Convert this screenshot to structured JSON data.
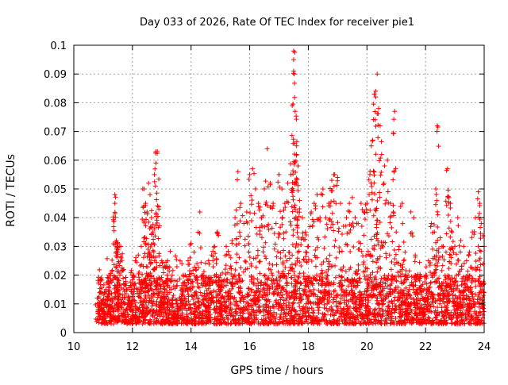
{
  "chart_data": {
    "type": "scatter",
    "title": "Day 033 of 2026, Rate Of TEC Index for receiver pie1",
    "xlabel": "GPS time / hours",
    "ylabel": "ROTI / TECUs",
    "xlim": [
      10,
      24
    ],
    "ylim": [
      0,
      0.1
    ],
    "x_ticks": [
      "10",
      "12",
      "14",
      "16",
      "18",
      "20",
      "22",
      "24"
    ],
    "y_ticks": [
      "0",
      "0.01",
      "0.02",
      "0.03",
      "0.04",
      "0.05",
      "0.06",
      "0.07",
      "0.08",
      "0.09",
      "0.1"
    ],
    "grid": true,
    "legend": "none",
    "marker": "+",
    "point_color": "#ff0000",
    "series": [
      {
        "points": [
          [
            10.8,
            0.012
          ],
          [
            10.9,
            0.018
          ],
          [
            11.0,
            0.01
          ],
          [
            11.1,
            0.015
          ],
          [
            11.2,
            0.02
          ],
          [
            11.3,
            0.012
          ],
          [
            11.4,
            0.048
          ],
          [
            11.4,
            0.045
          ],
          [
            11.45,
            0.032
          ],
          [
            11.5,
            0.031
          ],
          [
            11.55,
            0.03
          ],
          [
            11.6,
            0.03
          ],
          [
            11.5,
            0.028
          ],
          [
            11.7,
            0.022
          ],
          [
            11.8,
            0.015
          ],
          [
            11.9,
            0.012
          ],
          [
            12.0,
            0.02
          ],
          [
            12.1,
            0.025
          ],
          [
            12.2,
            0.027
          ],
          [
            12.3,
            0.03
          ],
          [
            12.35,
            0.05
          ],
          [
            12.4,
            0.05
          ],
          [
            12.45,
            0.045
          ],
          [
            12.5,
            0.042
          ],
          [
            12.55,
            0.052
          ],
          [
            12.6,
            0.048
          ],
          [
            12.65,
            0.04
          ],
          [
            12.7,
            0.035
          ],
          [
            12.75,
            0.055
          ],
          [
            12.8,
            0.063
          ],
          [
            12.85,
            0.063
          ],
          [
            12.8,
            0.059
          ],
          [
            12.9,
            0.043
          ],
          [
            13.0,
            0.025
          ],
          [
            13.1,
            0.023
          ],
          [
            13.2,
            0.025
          ],
          [
            13.3,
            0.018
          ],
          [
            13.4,
            0.013
          ],
          [
            13.5,
            0.01
          ],
          [
            13.6,
            0.012
          ],
          [
            13.7,
            0.015
          ],
          [
            13.8,
            0.02
          ],
          [
            13.9,
            0.025
          ],
          [
            14.0,
            0.031
          ],
          [
            14.1,
            0.028
          ],
          [
            14.2,
            0.024
          ],
          [
            14.3,
            0.042
          ],
          [
            14.4,
            0.02
          ],
          [
            14.5,
            0.018
          ],
          [
            14.6,
            0.025
          ],
          [
            14.7,
            0.027
          ],
          [
            14.8,
            0.03
          ],
          [
            14.9,
            0.035
          ],
          [
            15.0,
            0.02
          ],
          [
            15.1,
            0.018
          ],
          [
            15.2,
            0.03
          ],
          [
            15.3,
            0.027
          ],
          [
            15.4,
            0.032
          ],
          [
            15.5,
            0.04
          ],
          [
            15.6,
            0.056
          ],
          [
            15.7,
            0.045
          ],
          [
            15.8,
            0.038
          ],
          [
            15.9,
            0.042
          ],
          [
            16.0,
            0.055
          ],
          [
            16.1,
            0.057
          ],
          [
            16.2,
            0.05
          ],
          [
            16.3,
            0.045
          ],
          [
            16.4,
            0.04
          ],
          [
            16.5,
            0.05
          ],
          [
            16.6,
            0.064
          ],
          [
            16.7,
            0.052
          ],
          [
            16.8,
            0.045
          ],
          [
            16.9,
            0.038
          ],
          [
            17.0,
            0.055
          ],
          [
            17.1,
            0.05
          ],
          [
            17.2,
            0.045
          ],
          [
            17.3,
            0.052
          ],
          [
            17.4,
            0.055
          ],
          [
            17.45,
            0.079
          ],
          [
            17.5,
            0.098
          ],
          [
            17.5,
            0.095
          ],
          [
            17.5,
            0.091
          ],
          [
            17.52,
            0.09
          ],
          [
            17.55,
            0.077
          ],
          [
            17.6,
            0.065
          ],
          [
            17.6,
            0.062
          ],
          [
            17.65,
            0.058
          ],
          [
            17.7,
            0.046
          ],
          [
            17.8,
            0.04
          ],
          [
            17.9,
            0.035
          ],
          [
            18.0,
            0.03
          ],
          [
            18.1,
            0.042
          ],
          [
            18.2,
            0.045
          ],
          [
            18.3,
            0.048
          ],
          [
            18.4,
            0.04
          ],
          [
            18.5,
            0.05
          ],
          [
            18.6,
            0.04
          ],
          [
            18.7,
            0.045
          ],
          [
            18.8,
            0.053
          ],
          [
            18.9,
            0.055
          ],
          [
            19.0,
            0.054
          ],
          [
            19.1,
            0.045
          ],
          [
            19.2,
            0.037
          ],
          [
            19.3,
            0.04
          ],
          [
            19.4,
            0.045
          ],
          [
            19.5,
            0.047
          ],
          [
            19.6,
            0.04
          ],
          [
            19.7,
            0.038
          ],
          [
            19.8,
            0.045
          ],
          [
            19.9,
            0.042
          ],
          [
            20.0,
            0.045
          ],
          [
            20.1,
            0.055
          ],
          [
            20.15,
            0.065
          ],
          [
            20.2,
            0.067
          ],
          [
            20.25,
            0.083
          ],
          [
            20.3,
            0.082
          ],
          [
            20.3,
            0.084
          ],
          [
            20.35,
            0.09
          ],
          [
            20.4,
            0.078
          ],
          [
            20.45,
            0.072
          ],
          [
            20.5,
            0.062
          ],
          [
            20.6,
            0.058
          ],
          [
            20.7,
            0.06
          ],
          [
            20.8,
            0.045
          ],
          [
            20.9,
            0.042
          ],
          [
            20.95,
            0.077
          ],
          [
            21.0,
            0.035
          ],
          [
            21.1,
            0.03
          ],
          [
            21.2,
            0.045
          ],
          [
            21.3,
            0.028
          ],
          [
            21.4,
            0.02
          ],
          [
            21.5,
            0.042
          ],
          [
            21.6,
            0.04
          ],
          [
            21.7,
            0.015
          ],
          [
            21.8,
            0.018
          ],
          [
            21.9,
            0.012
          ],
          [
            22.0,
            0.02
          ],
          [
            22.1,
            0.025
          ],
          [
            22.2,
            0.038
          ],
          [
            22.3,
            0.035
          ],
          [
            22.35,
            0.05
          ],
          [
            22.4,
            0.072
          ],
          [
            22.5,
            0.033
          ],
          [
            22.6,
            0.03
          ],
          [
            22.7,
            0.028
          ],
          [
            22.75,
            0.057
          ],
          [
            22.8,
            0.047
          ],
          [
            22.85,
            0.045
          ],
          [
            22.9,
            0.035
          ],
          [
            23.0,
            0.03
          ],
          [
            23.1,
            0.04
          ],
          [
            23.2,
            0.032
          ],
          [
            23.3,
            0.03
          ],
          [
            23.4,
            0.025
          ],
          [
            23.5,
            0.028
          ],
          [
            23.6,
            0.035
          ],
          [
            23.7,
            0.04
          ],
          [
            23.8,
            0.049
          ],
          [
            23.85,
            0.045
          ],
          [
            23.9,
            0.038
          ],
          [
            24.0,
            0.03
          ]
        ],
        "baseline_band": [
          0.003,
          0.02
        ]
      }
    ]
  }
}
